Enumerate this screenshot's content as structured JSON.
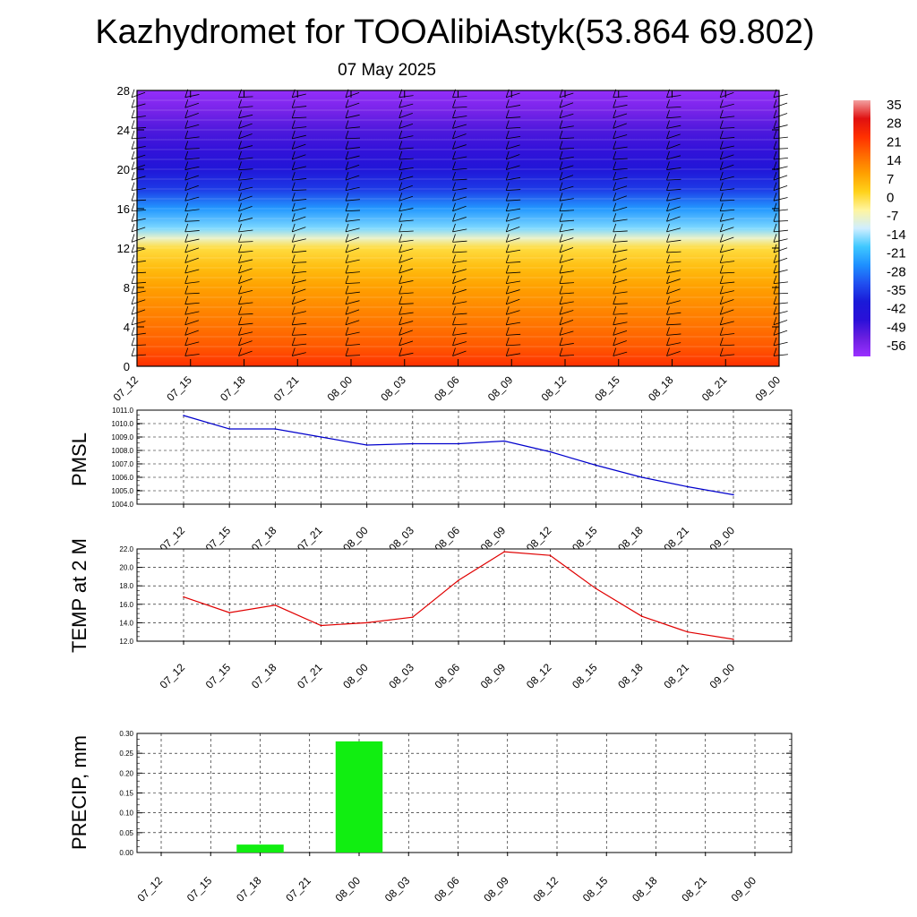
{
  "title": "Kazhydromet for TOOAlibiAstyk(53.864 69.802)",
  "subtitle": "07 May 2025",
  "time_labels": [
    "07_12",
    "07_15",
    "07_18",
    "07_21",
    "08_00",
    "08_03",
    "08_06",
    "08_09",
    "08_12",
    "08_15",
    "08_18",
    "08_21",
    "09_00"
  ],
  "chart_data": [
    {
      "type": "heatmap",
      "name_hidden": "temperature cross-section",
      "x": [
        "07_12",
        "07_15",
        "07_18",
        "07_21",
        "08_00",
        "08_03",
        "08_06",
        "08_09",
        "08_12",
        "08_15",
        "08_18",
        "08_21",
        "09_00"
      ],
      "yticks": [
        "0",
        "4",
        "8",
        "12",
        "16",
        "20",
        "24",
        "28"
      ],
      "ylim": [
        0,
        28
      ],
      "colorbar": {
        "labels": [
          "35",
          "28",
          "21",
          "14",
          "7",
          "0",
          "-7",
          "-14",
          "-21",
          "-28",
          "-35",
          "-42",
          "-49",
          "-56"
        ],
        "stops": [
          {
            "v": -63,
            "color": "#9b30ff"
          },
          {
            "v": -56,
            "color": "#6a1fe0"
          },
          {
            "v": -49,
            "color": "#2a10d8"
          },
          {
            "v": -42,
            "color": "#1a1ad8"
          },
          {
            "v": -35,
            "color": "#2050f0"
          },
          {
            "v": -28,
            "color": "#1e90ff"
          },
          {
            "v": -21,
            "color": "#3fc8ff"
          },
          {
            "v": -14,
            "color": "#cfeeff"
          },
          {
            "v": -7,
            "color": "#fff5a0"
          },
          {
            "v": 0,
            "color": "#ffd21a"
          },
          {
            "v": 7,
            "color": "#ffa000"
          },
          {
            "v": 14,
            "color": "#ff6a00"
          },
          {
            "v": 21,
            "color": "#ff3000"
          },
          {
            "v": 28,
            "color": "#e01010"
          },
          {
            "v": 35,
            "color": "#f2a0a0"
          }
        ]
      },
      "profile": [
        {
          "h": 0,
          "t": 21
        },
        {
          "h": 2,
          "t": 16
        },
        {
          "h": 4,
          "t": 13
        },
        {
          "h": 6,
          "t": 10
        },
        {
          "h": 8,
          "t": 7
        },
        {
          "h": 10,
          "t": 3
        },
        {
          "h": 12,
          "t": -2
        },
        {
          "h": 13,
          "t": -10
        },
        {
          "h": 14,
          "t": -18
        },
        {
          "h": 16,
          "t": -27
        },
        {
          "h": 18,
          "t": -38
        },
        {
          "h": 20,
          "t": -45
        },
        {
          "h": 22,
          "t": -50
        },
        {
          "h": 24,
          "t": -53
        },
        {
          "h": 26,
          "t": -58
        },
        {
          "h": 28,
          "t": -62
        }
      ]
    },
    {
      "type": "line",
      "ylabel": "PMSL",
      "ylim": [
        1004.0,
        1011.0
      ],
      "yticks": [
        "1004.0",
        "1005.0",
        "1006.0",
        "1007.0",
        "1008.0",
        "1009.0",
        "1010.0",
        "1011.0"
      ],
      "color": "#0000cc",
      "x": [
        "07_12",
        "07_15",
        "07_18",
        "07_21",
        "08_00",
        "08_03",
        "08_06",
        "08_09",
        "08_12",
        "08_15",
        "08_18",
        "08_21",
        "09_00"
      ],
      "values": [
        1010.6,
        1009.6,
        1009.6,
        1009.0,
        1008.4,
        1008.5,
        1008.5,
        1008.7,
        1007.9,
        1006.9,
        1006.0,
        1005.3,
        1004.7
      ]
    },
    {
      "type": "line",
      "ylabel": "TEMP at 2 M",
      "ylim": [
        12.0,
        22.0
      ],
      "yticks": [
        "12.0",
        "14.0",
        "16.0",
        "18.0",
        "20.0",
        "22.0"
      ],
      "color": "#e00000",
      "x": [
        "07_12",
        "07_15",
        "07_18",
        "07_21",
        "08_00",
        "08_03",
        "08_06",
        "08_09",
        "08_12",
        "08_15",
        "08_18",
        "08_21",
        "09_00"
      ],
      "values": [
        16.8,
        15.1,
        15.9,
        13.7,
        14.0,
        14.6,
        18.6,
        21.7,
        21.3,
        17.7,
        14.7,
        13.0,
        12.2
      ]
    },
    {
      "type": "bar",
      "ylabel": "PRECIP, mm",
      "ylim": [
        0.0,
        0.3
      ],
      "yticks": [
        "0.00",
        "0.05",
        "0.10",
        "0.15",
        "0.20",
        "0.25",
        "0.30"
      ],
      "color": "#11ee11",
      "categories": [
        "07_12",
        "07_15",
        "07_18",
        "07_21",
        "08_00",
        "08_03",
        "08_06",
        "08_09",
        "08_12",
        "08_15",
        "08_18",
        "08_21",
        "09_00"
      ],
      "values": [
        0,
        0,
        0.02,
        0,
        0.28,
        0,
        0,
        0,
        0,
        0,
        0,
        0,
        0
      ]
    }
  ]
}
